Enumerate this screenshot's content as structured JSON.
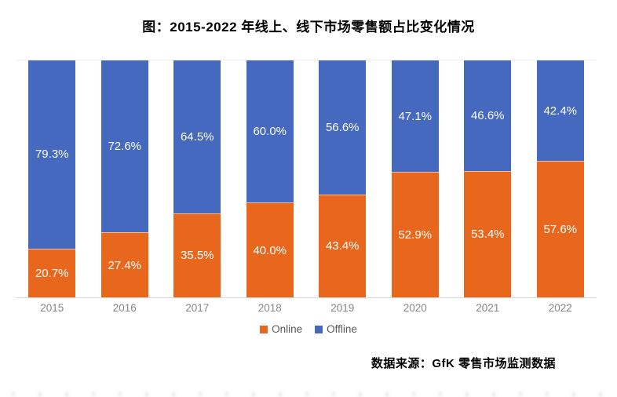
{
  "chart_data": {
    "type": "bar",
    "stacked": true,
    "title": "图：2015-2022 年线上、线下市场零售额占比变化情况",
    "categories": [
      "2015",
      "2016",
      "2017",
      "2018",
      "2019",
      "2020",
      "2021",
      "2022"
    ],
    "series": [
      {
        "name": "Online",
        "color": "#E8671C",
        "values": [
          20.7,
          27.4,
          35.5,
          40.0,
          43.4,
          52.9,
          53.4,
          57.6
        ]
      },
      {
        "name": "Offline",
        "color": "#4569BE",
        "values": [
          79.3,
          72.6,
          64.5,
          60.0,
          56.6,
          47.1,
          46.6,
          42.4
        ]
      }
    ],
    "ylim": [
      0,
      100
    ],
    "value_label_format": "one_decimal_percent",
    "value_label_color": "#ffffff",
    "axis_line_color": "#d9d9d9",
    "tick_label_color": "#868686",
    "legend_position": "bottom",
    "legend_text_color": "#595959"
  },
  "source_note": "数据来源：GfK 零售市场监测数据"
}
